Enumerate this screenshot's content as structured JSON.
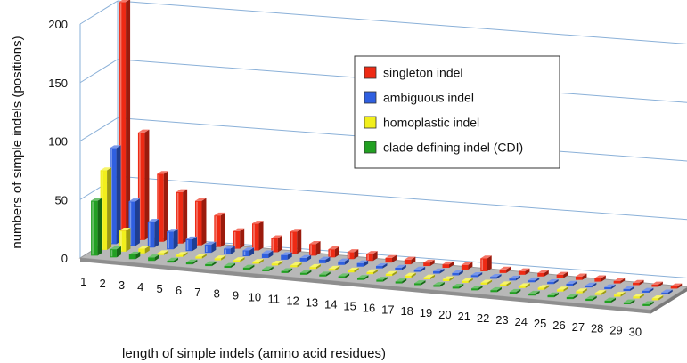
{
  "chart_data": {
    "type": "bar",
    "style": "3d-clustered-depth",
    "title": "",
    "xlabel": "length of simple indels (amino acid residues)",
    "ylabel": "numbers of simple indels (positions)",
    "ylim": [
      0,
      200
    ],
    "yticks": [
      0,
      50,
      100,
      150,
      200
    ],
    "grid": true,
    "legend_position": "top-right",
    "categories": [
      "1",
      "2",
      "3",
      "4",
      "5",
      "6",
      "7",
      "8",
      "9",
      "10",
      "11",
      "12",
      "13",
      "14",
      "15",
      "16",
      "17",
      "18",
      "19",
      "20",
      "21",
      "22",
      "23",
      "24",
      "25",
      "26",
      "27",
      "28",
      "29",
      "30"
    ],
    "series": [
      {
        "name": "clade defining indel (CDI)",
        "color": "#22a022",
        "values": [
          47,
          7,
          4,
          3,
          1,
          1,
          1,
          1,
          1,
          1,
          1,
          1,
          1,
          1,
          1,
          1,
          1,
          1,
          1,
          1,
          1,
          1,
          1,
          1,
          1,
          1,
          1,
          1,
          1,
          1
        ]
      },
      {
        "name": "homoplastic indel",
        "color": "#f2ef1c",
        "values": [
          68,
          18,
          4,
          1,
          0,
          0,
          0,
          0,
          0,
          0,
          0,
          0,
          0,
          0,
          0,
          0,
          0,
          0,
          0,
          0,
          0,
          0,
          0,
          0,
          0,
          0,
          0,
          0,
          0,
          0
        ]
      },
      {
        "name": "ambiguous indel",
        "color": "#2f5fe0",
        "values": [
          82,
          38,
          22,
          15,
          10,
          7,
          5,
          5,
          4,
          4,
          3,
          3,
          3,
          3,
          2,
          2,
          2,
          2,
          2,
          1,
          1,
          1,
          1,
          1,
          1,
          1,
          1,
          1,
          1,
          1
        ]
      },
      {
        "name": "singleton indel",
        "color": "#ee2a14",
        "values": [
          202,
          92,
          58,
          44,
          38,
          27,
          15,
          23,
          12,
          19,
          10,
          7,
          6,
          6,
          4,
          4,
          3,
          3,
          4,
          11,
          3,
          3,
          3,
          3,
          3,
          3,
          2,
          2,
          2,
          2
        ]
      }
    ],
    "legend_order": [
      "singleton indel",
      "ambiguous indel",
      "homoplastic indel",
      "clade defining indel (CDI)"
    ]
  }
}
